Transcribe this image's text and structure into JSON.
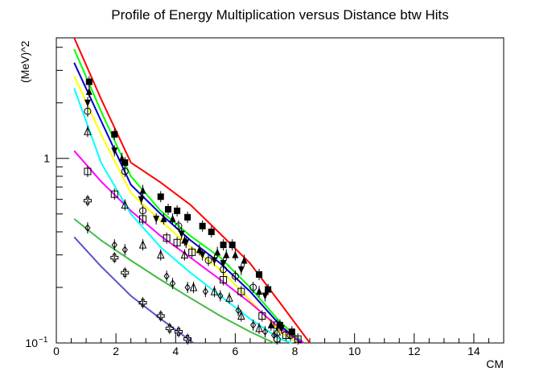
{
  "chart_data": {
    "type": "line",
    "title": "Profile of Energy Multiplication versus Distance btw Hits",
    "xlabel": "CM",
    "ylabel": "(MeV)^2",
    "xlim": [
      0,
      15
    ],
    "ylim": [
      0.1,
      4.5
    ],
    "yscale": "log",
    "grid": false,
    "legend": "none",
    "x_ticks": [
      0,
      2,
      4,
      6,
      8,
      10,
      12,
      14
    ],
    "x_tick_labels": [
      "0",
      "2",
      "4",
      "6",
      "8",
      "10",
      "12",
      "14"
    ],
    "y_ticks": [
      {
        "value": 1,
        "label": "1",
        "exp": ""
      },
      {
        "value": 0.1,
        "label": "10",
        "exp": "−1"
      }
    ],
    "series": [
      {
        "color": "#ff0000",
        "marker": "square-filled",
        "x": [
          1.1,
          1.95,
          2.3,
          3.5,
          3.75,
          4.05,
          4.4,
          4.9,
          5.2,
          5.6,
          5.9,
          6.8,
          7.1,
          7.5,
          7.9
        ],
        "y": [
          2.6,
          1.35,
          0.95,
          0.62,
          0.53,
          0.52,
          0.48,
          0.43,
          0.4,
          0.34,
          0.34,
          0.235,
          0.195,
          0.125,
          0.115
        ],
        "fit_x": [
          0.6,
          1.5,
          2.5,
          3.5,
          4.5,
          5.5,
          6.5,
          7.5,
          8.5
        ],
        "fit_y": [
          4.5,
          2.1,
          0.95,
          0.74,
          0.56,
          0.39,
          0.27,
          0.165,
          0.1
        ]
      },
      {
        "color": "#00ff00",
        "marker": "triangle-up-filled",
        "x": [
          1.1,
          2.2,
          2.9,
          3.6,
          3.9,
          4.3,
          4.8,
          5.4,
          5.7,
          6.0,
          6.3,
          6.8,
          7.2
        ],
        "y": [
          2.3,
          1.0,
          0.67,
          0.47,
          0.47,
          0.36,
          0.32,
          0.31,
          0.3,
          0.3,
          0.28,
          0.19,
          0.125
        ],
        "fit_x": [
          0.6,
          1.5,
          2.5,
          3.5,
          4.5,
          5.5,
          6.5,
          7.5,
          8.3
        ],
        "fit_y": [
          3.9,
          1.8,
          0.8,
          0.52,
          0.38,
          0.29,
          0.2,
          0.13,
          0.1
        ]
      },
      {
        "color": "#0000cc",
        "marker": "triangle-down-filled",
        "x": [
          1.05,
          1.95,
          2.85,
          3.35,
          4.2,
          4.35,
          4.9,
          5.3,
          5.6,
          6.2,
          7.0,
          7.55
        ],
        "y": [
          2.0,
          1.1,
          0.6,
          0.47,
          0.39,
          0.35,
          0.3,
          0.28,
          0.27,
          0.25,
          0.18,
          0.12
        ],
        "fit_x": [
          0.6,
          1.5,
          2.5,
          3.5,
          4.5,
          5.5,
          6.5,
          7.5,
          8.2
        ],
        "fit_y": [
          3.3,
          1.6,
          0.72,
          0.5,
          0.36,
          0.27,
          0.19,
          0.125,
          0.1
        ]
      },
      {
        "color": "#ffff00",
        "marker": "circle-open",
        "x": [
          1.05,
          2.3,
          2.9,
          4.1,
          5.1,
          5.6,
          6.0,
          6.6,
          7.4,
          7.85
        ],
        "y": [
          1.8,
          0.85,
          0.52,
          0.43,
          0.28,
          0.25,
          0.23,
          0.2,
          0.105,
          0.11
        ],
        "fit_x": [
          0.6,
          1.5,
          2.5,
          3.5,
          4.5,
          5.5,
          6.5,
          7.5,
          8.1
        ],
        "fit_y": [
          2.8,
          1.35,
          0.65,
          0.46,
          0.33,
          0.25,
          0.17,
          0.115,
          0.1
        ]
      },
      {
        "color": "#ff00ff",
        "marker": "square-open",
        "x": [
          1.05,
          1.95,
          2.9,
          3.7,
          4.05,
          4.55,
          5.6,
          6.2,
          6.9,
          7.4,
          7.7,
          8.1
        ],
        "y": [
          0.85,
          0.64,
          0.47,
          0.37,
          0.35,
          0.31,
          0.22,
          0.19,
          0.14,
          0.125,
          0.11,
          0.105
        ],
        "fit_x": [
          0.6,
          1.5,
          2.5,
          3.5,
          4.5,
          5.5,
          6.5,
          7.5,
          8.3
        ],
        "fit_y": [
          1.1,
          0.75,
          0.52,
          0.38,
          0.29,
          0.22,
          0.165,
          0.12,
          0.1
        ]
      },
      {
        "color": "#00ffff",
        "marker": "triangle-up-open",
        "x": [
          1.05,
          2.3,
          2.9,
          3.5,
          4.3,
          4.6,
          5.3,
          5.8,
          6.2,
          6.8,
          7.4
        ],
        "y": [
          1.4,
          0.56,
          0.34,
          0.3,
          0.3,
          0.2,
          0.19,
          0.175,
          0.14,
          0.12,
          0.115
        ],
        "fit_x": [
          0.6,
          1.5,
          2.5,
          3.5,
          4.5,
          5.5,
          6.5,
          7.5,
          7.9
        ],
        "fit_y": [
          2.4,
          0.95,
          0.5,
          0.33,
          0.24,
          0.18,
          0.135,
          0.105,
          0.1
        ]
      },
      {
        "color": "#44bb44",
        "marker": "diamond-open",
        "x": [
          1.05,
          1.95,
          2.3,
          3.7,
          3.9,
          4.4,
          5.0,
          5.5,
          6.1,
          6.6,
          7.0,
          7.3
        ],
        "y": [
          0.42,
          0.34,
          0.32,
          0.23,
          0.21,
          0.2,
          0.19,
          0.18,
          0.15,
          0.125,
          0.115,
          0.11
        ],
        "fit_x": [
          0.6,
          1.5,
          2.5,
          3.5,
          4.5,
          5.5,
          6.5,
          7.3
        ],
        "fit_y": [
          0.47,
          0.36,
          0.28,
          0.22,
          0.175,
          0.14,
          0.115,
          0.1
        ]
      },
      {
        "color": "#5555cc",
        "marker": "cross-open",
        "x": [
          1.05,
          1.95,
          2.3,
          2.9,
          3.5,
          3.8,
          4.1,
          4.4
        ],
        "y": [
          0.59,
          0.29,
          0.24,
          0.165,
          0.14,
          0.12,
          0.115,
          0.105
        ],
        "fit_x": [
          0.6,
          1.5,
          2.5,
          3.5,
          4.6
        ],
        "fit_y": [
          0.375,
          0.26,
          0.18,
          0.135,
          0.1
        ]
      }
    ]
  }
}
